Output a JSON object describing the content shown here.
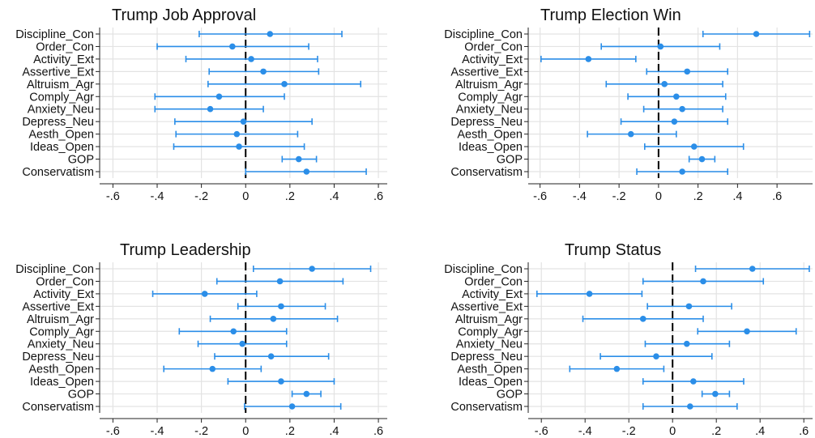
{
  "chart_data": [
    {
      "type": "scatter",
      "title": "Trump Job Approval",
      "categories": [
        "Discipline_Con",
        "Order_Con",
        "Activity_Ext",
        "Assertive_Ext",
        "Altruism_Agr",
        "Comply_Agr",
        "Anxiety_Neu",
        "Depress_Neu",
        "Aesth_Open",
        "Ideas_Open",
        "GOP",
        "Conservatism"
      ],
      "estimates": [
        0.11,
        -0.06,
        0.025,
        0.08,
        0.175,
        -0.12,
        -0.16,
        -0.01,
        -0.04,
        -0.03,
        0.24,
        0.275
      ],
      "ci_low": [
        -0.21,
        -0.4,
        -0.27,
        -0.165,
        -0.17,
        -0.41,
        -0.41,
        -0.32,
        -0.315,
        -0.325,
        0.165,
        0.0
      ],
      "ci_high": [
        0.435,
        0.285,
        0.325,
        0.33,
        0.52,
        0.175,
        0.08,
        0.3,
        0.235,
        0.265,
        0.32,
        0.545
      ],
      "xlim": [
        -0.66,
        0.64
      ],
      "xticks": [
        -0.6,
        -0.4,
        -0.2,
        0,
        0.2,
        0.4,
        0.6
      ],
      "xtick_labels": [
        "-.6",
        "-.4",
        "-.2",
        "0",
        ".2",
        ".4",
        ".6"
      ],
      "grid": true,
      "reference_line": 0
    },
    {
      "type": "scatter",
      "title": "Trump Election Win",
      "categories": [
        "Discipline_Con",
        "Order_Con",
        "Activity_Ext",
        "Assertive_Ext",
        "Altruism_Agr",
        "Comply_Agr",
        "Anxiety_Neu",
        "Depress_Neu",
        "Aesth_Open",
        "Ideas_Open",
        "GOP",
        "Conservatism"
      ],
      "estimates": [
        0.495,
        0.01,
        -0.355,
        0.145,
        0.03,
        0.09,
        0.12,
        0.08,
        -0.14,
        0.18,
        0.22,
        0.12
      ],
      "ci_low": [
        0.225,
        -0.29,
        -0.595,
        -0.06,
        -0.265,
        -0.155,
        -0.075,
        -0.19,
        -0.36,
        -0.07,
        0.155,
        -0.11
      ],
      "ci_high": [
        0.765,
        0.31,
        -0.115,
        0.35,
        0.325,
        0.34,
        0.325,
        0.35,
        0.09,
        0.43,
        0.285,
        0.35
      ],
      "xlim": [
        -0.66,
        0.78
      ],
      "xticks": [
        -0.6,
        -0.4,
        -0.2,
        0,
        0.2,
        0.4,
        0.6
      ],
      "xtick_labels": [
        "-.6",
        "-.4",
        "-.2",
        "0",
        ".2",
        ".4",
        ".6"
      ],
      "grid": true,
      "reference_line": 0
    },
    {
      "type": "scatter",
      "title": "Trump Leadership",
      "categories": [
        "Discipline_Con",
        "Order_Con",
        "Activity_Ext",
        "Assertive_Ext",
        "Altruism_Agr",
        "Comply_Agr",
        "Anxiety_Neu",
        "Depress_Neu",
        "Aesth_Open",
        "Ideas_Open",
        "GOP",
        "Conservatism"
      ],
      "estimates": [
        0.3,
        0.155,
        -0.185,
        0.16,
        0.125,
        -0.055,
        -0.015,
        0.115,
        -0.15,
        0.16,
        0.275,
        0.21
      ],
      "ci_low": [
        0.035,
        -0.13,
        -0.42,
        -0.035,
        -0.16,
        -0.3,
        -0.215,
        -0.14,
        -0.37,
        -0.08,
        0.21,
        -0.005
      ],
      "ci_high": [
        0.565,
        0.44,
        0.05,
        0.36,
        0.415,
        0.185,
        0.185,
        0.375,
        0.07,
        0.4,
        0.34,
        0.43
      ],
      "xlim": [
        -0.66,
        0.64
      ],
      "xticks": [
        -0.6,
        -0.4,
        -0.2,
        0,
        0.2,
        0.4,
        0.6
      ],
      "xtick_labels": [
        "-.6",
        "-.4",
        "-.2",
        "0",
        ".2",
        ".4",
        ".6"
      ],
      "grid": true,
      "reference_line": 0
    },
    {
      "type": "scatter",
      "title": "Trump Status",
      "categories": [
        "Discipline_Con",
        "Order_Con",
        "Activity_Ext",
        "Assertive_Ext",
        "Altruism_Agr",
        "Comply_Agr",
        "Anxiety_Neu",
        "Depress_Neu",
        "Aesth_Open",
        "Ideas_Open",
        "GOP",
        "Conservatism"
      ],
      "estimates": [
        0.365,
        0.14,
        -0.38,
        0.075,
        -0.135,
        0.34,
        0.065,
        -0.075,
        -0.255,
        0.095,
        0.195,
        0.08
      ],
      "ci_low": [
        0.105,
        -0.135,
        -0.62,
        -0.115,
        -0.41,
        0.115,
        -0.125,
        -0.33,
        -0.47,
        -0.135,
        0.135,
        -0.135
      ],
      "ci_high": [
        0.625,
        0.415,
        -0.14,
        0.27,
        0.14,
        0.565,
        0.26,
        0.18,
        -0.04,
        0.325,
        0.26,
        0.295
      ],
      "xlim": [
        -0.66,
        0.64
      ],
      "xticks": [
        -0.6,
        -0.4,
        -0.2,
        0,
        0.2,
        0.4,
        0.6
      ],
      "xtick_labels": [
        "-.6",
        "-.4",
        "-.2",
        "0",
        ".2",
        ".4",
        ".6"
      ],
      "grid": true,
      "reference_line": 0
    }
  ],
  "colors": {
    "marker": "#2b8ee8",
    "ci_line": "#2b8ee8",
    "grid": "#e3e3e3",
    "axis": "#222222",
    "text": "#111111",
    "reference_line": "#000000"
  }
}
